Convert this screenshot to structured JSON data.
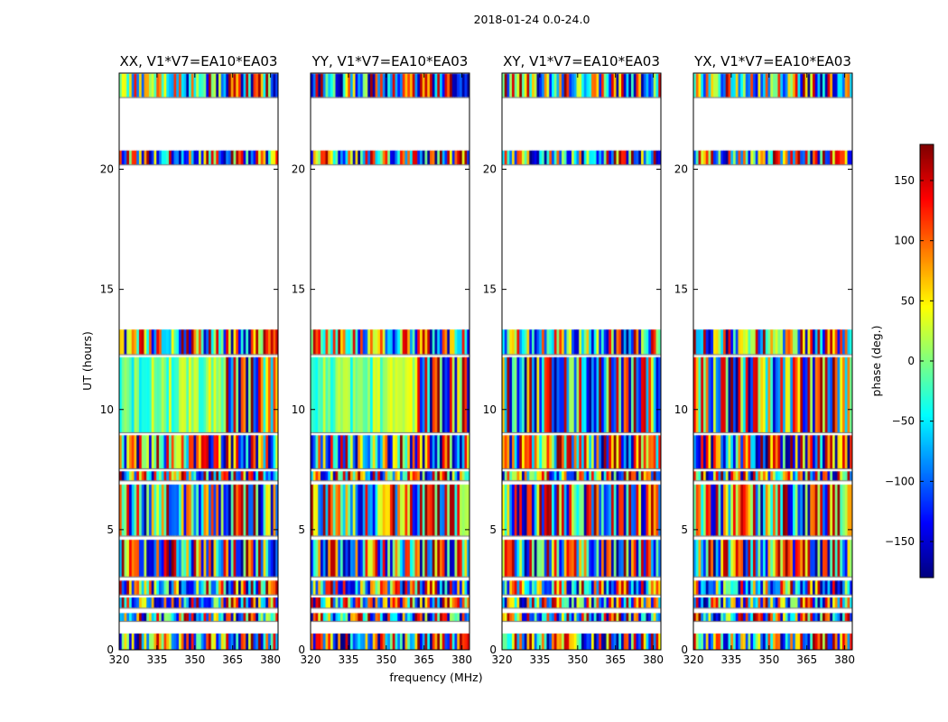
{
  "chart_data": {
    "type": "heatmap",
    "suptitle": "2018-01-24 0.0-24.0",
    "xlabel": "frequency (MHz)",
    "ylabel": "UT (hours)",
    "xlim": [
      320,
      383
    ],
    "ylim": [
      0,
      24
    ],
    "xticks": [
      320,
      335,
      350,
      365,
      380
    ],
    "yticks": [
      0,
      5,
      10,
      15,
      20
    ],
    "panels": [
      {
        "title": "XX, V1*V7=EA10*EA03",
        "polarization": "XX"
      },
      {
        "title": "YY, V1*V7=EA10*EA03",
        "polarization": "YY"
      },
      {
        "title": "XY, V1*V7=EA10*EA03",
        "polarization": "XY"
      },
      {
        "title": "YX, V1*V7=EA10*EA03",
        "polarization": "YX"
      }
    ],
    "colorbar": {
      "label": "phase (deg.)",
      "range": [
        -180,
        180
      ],
      "ticks": [
        -150,
        -100,
        -50,
        0,
        50,
        100,
        150
      ],
      "colormap": "jet"
    },
    "data_coverage_ut_hours": [
      [
        0.0,
        0.7
      ],
      [
        1.2,
        1.55
      ],
      [
        1.75,
        2.2
      ],
      [
        2.3,
        2.9
      ],
      [
        3.05,
        4.6
      ],
      [
        4.75,
        6.9
      ],
      [
        7.05,
        7.45
      ],
      [
        7.55,
        8.95
      ],
      [
        9.05,
        12.2
      ],
      [
        12.3,
        13.35
      ],
      [
        20.2,
        20.8
      ],
      [
        23.0,
        24.0
      ]
    ],
    "coherent_phase_region": {
      "ut_hours": [
        8.9,
        12.8
      ],
      "panels": [
        "XX",
        "YY"
      ]
    },
    "fringe_region_mhz": [
      361,
      376
    ]
  }
}
